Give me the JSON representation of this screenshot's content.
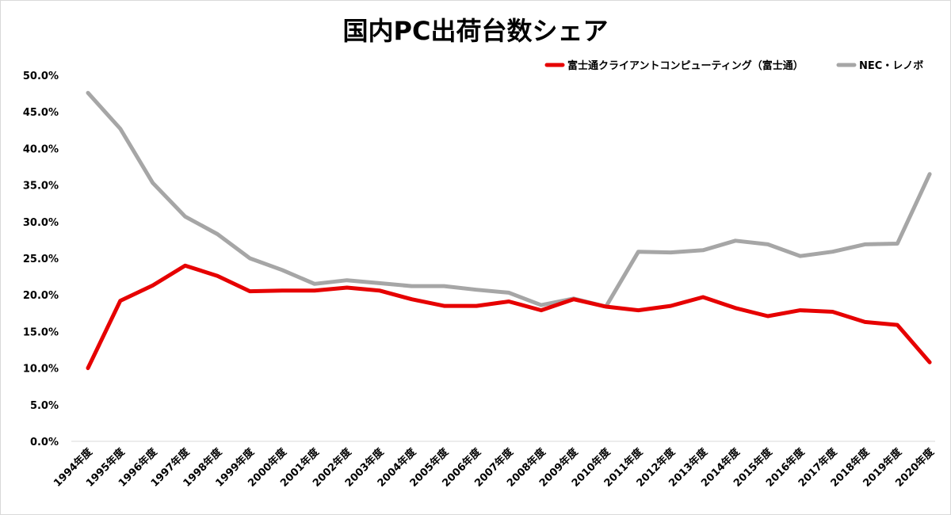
{
  "chart_data": {
    "type": "line",
    "title": "国内PC出荷台数シェア",
    "xlabel": "",
    "ylabel": "",
    "ylim": [
      0,
      50
    ],
    "y_ticks": [
      "0.0%",
      "5.0%",
      "10.0%",
      "15.0%",
      "20.0%",
      "25.0%",
      "30.0%",
      "35.0%",
      "40.0%",
      "45.0%",
      "50.0%"
    ],
    "grid": false,
    "legend_position": "top-right",
    "categories": [
      "1994年度",
      "1995年度",
      "1996年度",
      "1997年度",
      "1998年度",
      "1999年度",
      "2000年度",
      "2001年度",
      "2002年度",
      "2003年度",
      "2004年度",
      "2005年度",
      "2006年度",
      "2007年度",
      "2008年度",
      "2009年度",
      "2010年度",
      "2011年度",
      "2012年度",
      "2013年度",
      "2014年度",
      "2015年度",
      "2016年度",
      "2017年度",
      "2018年度",
      "2019年度",
      "2020年度"
    ],
    "series": [
      {
        "name": "富士通クライアントコンピューティング（富士通）",
        "color": "#e60000",
        "values": [
          10.0,
          19.2,
          21.3,
          24.0,
          22.6,
          20.5,
          20.6,
          20.6,
          21.0,
          20.6,
          19.4,
          18.5,
          18.5,
          19.1,
          17.9,
          19.4,
          18.4,
          17.9,
          18.5,
          19.7,
          18.2,
          17.1,
          17.9,
          17.7,
          16.3,
          15.9,
          10.8
        ]
      },
      {
        "name": "NEC・レノボ",
        "color": "#a6a6a6",
        "values": [
          47.6,
          42.7,
          35.3,
          30.7,
          28.3,
          25.0,
          23.4,
          21.5,
          22.0,
          21.6,
          21.2,
          21.2,
          20.7,
          20.3,
          18.6,
          19.5,
          18.4,
          25.9,
          25.8,
          26.1,
          27.4,
          26.9,
          25.3,
          25.9,
          26.9,
          27.0,
          36.5
        ]
      }
    ]
  }
}
